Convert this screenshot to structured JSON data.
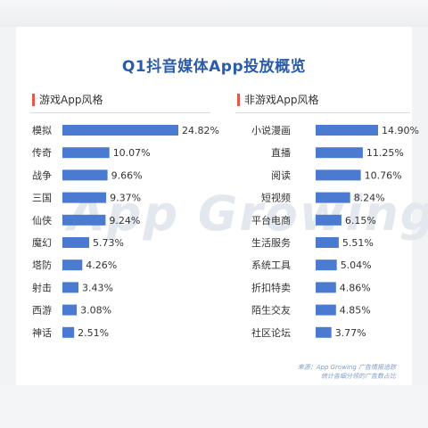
{
  "title": "Q1抖音媒体App投放概览",
  "watermark": "App Growing",
  "source_line1": "来源：App Growing 广告情报追踪",
  "source_line2": "统计各细分领的广告数占比",
  "chart_data": [
    {
      "type": "bar",
      "orientation": "horizontal",
      "title": "游戏App风格",
      "categories": [
        "模拟",
        "传奇",
        "战争",
        "三国",
        "仙侠",
        "魔幻",
        "塔防",
        "射击",
        "西游",
        "神话"
      ],
      "values": [
        24.82,
        10.07,
        9.66,
        9.37,
        9.24,
        5.73,
        4.26,
        3.43,
        3.08,
        2.51
      ],
      "labels": [
        "24.82%",
        "10.07%",
        "9.66%",
        "9.37%",
        "9.24%",
        "5.73%",
        "4.26%",
        "3.43%",
        "3.08%",
        "2.51%"
      ],
      "unit": "%",
      "bar_color": "#4a7bd0",
      "grid": false
    },
    {
      "type": "bar",
      "orientation": "horizontal",
      "title": "非游戏App风格",
      "categories": [
        "小说漫画",
        "直播",
        "阅读",
        "短视频",
        "平台电商",
        "生活服务",
        "系统工具",
        "折扣特卖",
        "陌生交友",
        "社区论坛"
      ],
      "values": [
        14.9,
        11.25,
        10.76,
        8.24,
        6.15,
        5.51,
        5.04,
        4.86,
        4.85,
        3.77
      ],
      "labels": [
        "14.90%",
        "11.25%",
        "10.76%",
        "8.24%",
        "6.15%",
        "5.51%",
        "5.04%",
        "4.86%",
        "4.85%",
        "3.77%"
      ],
      "unit": "%",
      "bar_color": "#4a7bd0",
      "grid": false
    }
  ]
}
